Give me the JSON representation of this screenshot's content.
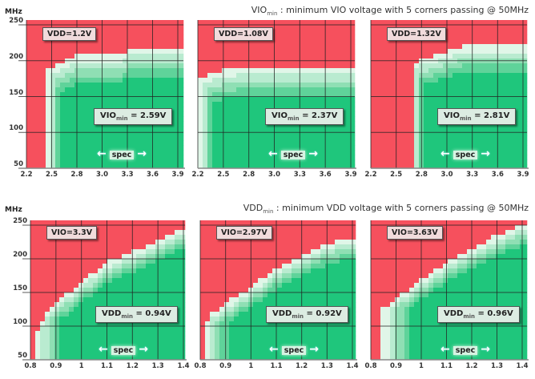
{
  "titles": {
    "top": {
      "main": "VIO",
      "sub": "min",
      "rest": " : minimum VIO voltage with 5 corners passing @ 50MHz"
    },
    "bottom": {
      "main": "VDD",
      "sub": "min",
      "rest": " : minimum VDD voltage with 5 corners passing @ 50MHz"
    }
  },
  "y_unit": "MHz",
  "spec_label": "spec",
  "colors": {
    "fail": "#f6505d",
    "pass": "#1fc67c",
    "partial": [
      "#e0f6e8",
      "#b9ebd0",
      "#8fdfb4",
      "#5fd39a"
    ],
    "grid": "#222222"
  },
  "chart_data": [
    {
      "type": "heatmap",
      "row": "top",
      "setting": "VDD=1.2V",
      "result": {
        "main": "VIO",
        "sub": "min",
        "rest": " =  2.59V"
      },
      "x_ticks": [
        "2.2",
        "2.5",
        "2.8",
        "3.0",
        "3.3",
        "3.6",
        "3.9"
      ],
      "y_ticks": [
        "250",
        "200",
        "150",
        "100",
        "50"
      ],
      "xlabel": "",
      "ylabel": "MHz",
      "vmin_pass": 2.45,
      "fmax_boundary": [
        [
          2.45,
          188
        ],
        [
          2.65,
          198
        ],
        [
          2.8,
          207
        ],
        [
          3.25,
          207
        ],
        [
          3.3,
          217
        ],
        [
          3.9,
          217
        ]
      ],
      "transition": {
        "v": 0.16,
        "f": 38
      }
    },
    {
      "type": "heatmap",
      "row": "top",
      "setting": "VDD=1.08V",
      "result": {
        "main": "VIO",
        "sub": "min",
        "rest": " =  2.37V"
      },
      "x_ticks": [
        "2.2",
        "2.5",
        "2.8",
        "3.0",
        "3.3",
        "3.6",
        "3.9"
      ],
      "y_ticks": [
        "250",
        "200",
        "150",
        "100",
        "50"
      ],
      "xlabel": "",
      "ylabel": "MHz",
      "vmin_pass": 2.2,
      "fmax_boundary": [
        [
          2.2,
          172
        ],
        [
          2.3,
          180
        ],
        [
          2.45,
          186
        ],
        [
          2.8,
          192
        ],
        [
          3.9,
          192
        ]
      ],
      "transition": {
        "v": 0.18,
        "f": 40
      }
    },
    {
      "type": "heatmap",
      "row": "top",
      "setting": "VDD=1.32V",
      "result": {
        "main": "VIO",
        "sub": "min",
        "rest": " =  2.81V"
      },
      "x_ticks": [
        "2.2",
        "2.5",
        "2.8",
        "3.0",
        "3.3",
        "3.6",
        "3.9"
      ],
      "y_ticks": [
        "250",
        "200",
        "150",
        "100",
        "50"
      ],
      "xlabel": "",
      "ylabel": "MHz",
      "vmin_pass": 2.69,
      "fmax_boundary": [
        [
          2.69,
          197
        ],
        [
          2.85,
          205
        ],
        [
          3.0,
          212
        ],
        [
          3.2,
          222
        ],
        [
          3.9,
          222
        ]
      ],
      "transition": {
        "v": 0.14,
        "f": 36
      }
    },
    {
      "type": "heatmap",
      "row": "bottom",
      "setting": "VIO=3.3V",
      "result": {
        "main": "VDD",
        "sub": "min",
        "rest": " =  0.94V"
      },
      "x_ticks": [
        "0.8",
        "0.9",
        "1",
        "1.1",
        "1.2",
        "1.3",
        "1.4"
      ],
      "y_ticks": [
        "250",
        "200",
        "150",
        "100",
        "50"
      ],
      "xlabel": "",
      "ylabel": "MHz",
      "vmin_pass": 0.82,
      "fmax_boundary": [
        [
          0.82,
          85
        ],
        [
          0.84,
          105
        ],
        [
          0.87,
          125
        ],
        [
          0.9,
          135
        ],
        [
          0.95,
          150
        ],
        [
          1.0,
          165
        ],
        [
          1.05,
          180
        ],
        [
          1.1,
          195
        ],
        [
          1.2,
          210
        ],
        [
          1.3,
          228
        ],
        [
          1.4,
          245
        ]
      ],
      "transition": {
        "v": 0.1,
        "f": 30
      }
    },
    {
      "type": "heatmap",
      "row": "bottom",
      "setting": "VIO=2.97V",
      "result": {
        "main": "VDD",
        "sub": "min",
        "rest": " =  0.92V"
      },
      "x_ticks": [
        "0.8",
        "0.9",
        "1",
        "1.1",
        "1.2",
        "1.3",
        "1.4"
      ],
      "y_ticks": [
        "250",
        "200",
        "150",
        "100",
        "50"
      ],
      "xlabel": "",
      "ylabel": "MHz",
      "vmin_pass": 0.81,
      "fmax_boundary": [
        [
          0.81,
          100
        ],
        [
          0.85,
          120
        ],
        [
          0.9,
          135
        ],
        [
          0.95,
          145
        ],
        [
          1.0,
          158
        ],
        [
          1.1,
          185
        ],
        [
          1.2,
          205
        ],
        [
          1.3,
          222
        ],
        [
          1.4,
          232
        ]
      ],
      "transition": {
        "v": 0.1,
        "f": 30
      }
    },
    {
      "type": "heatmap",
      "row": "bottom",
      "setting": "VIO=3.63V",
      "result": {
        "main": "VDD",
        "sub": "min",
        "rest": " =  0.96V"
      },
      "x_ticks": [
        "0.8",
        "0.9",
        "1",
        "1.1",
        "1.2",
        "1.3",
        "1.4"
      ],
      "y_ticks": [
        "250",
        "200",
        "150",
        "100",
        "50"
      ],
      "xlabel": "",
      "ylabel": "MHz",
      "vmin_pass": 0.84,
      "fmax_boundary": [
        [
          0.84,
          125
        ],
        [
          0.9,
          140
        ],
        [
          0.95,
          155
        ],
        [
          1.0,
          170
        ],
        [
          1.1,
          195
        ],
        [
          1.2,
          215
        ],
        [
          1.3,
          235
        ],
        [
          1.4,
          250
        ]
      ],
      "transition": {
        "v": 0.12,
        "f": 30
      }
    }
  ]
}
